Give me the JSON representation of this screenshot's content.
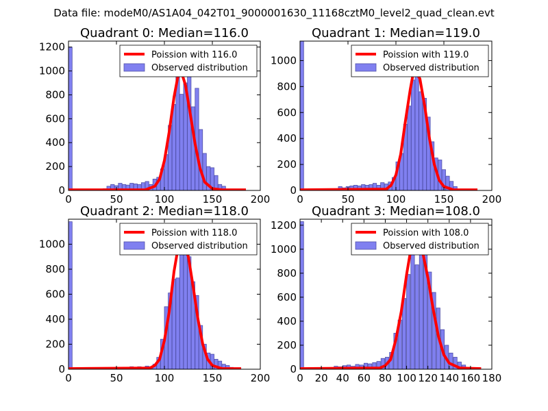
{
  "figure": {
    "suptitle": "Data file: modeM0/AS1A04_042T01_9000001630_11168cztM0_level2_quad_clean.evt"
  },
  "colors": {
    "bars": "#8080f0",
    "bar_edge": "#5050a8",
    "fit_line": "#ff0000"
  },
  "chart_data": [
    {
      "type": "bar",
      "title": "Quadrant 0: Median=116.0",
      "xlim": [
        0,
        200
      ],
      "ylim": [
        0,
        1250
      ],
      "xticks": [
        0,
        50,
        100,
        150,
        200
      ],
      "yticks": [
        0,
        200,
        400,
        600,
        800,
        1000,
        1200
      ],
      "legend": {
        "position": "top-right",
        "fit_label": "Poission with 116.0",
        "hist_label": "Observed distribution"
      },
      "bin_width": 3.8,
      "bins": [
        [
          0,
          1200
        ],
        [
          36,
          15
        ],
        [
          40,
          35
        ],
        [
          44,
          50
        ],
        [
          48,
          40
        ],
        [
          52,
          60
        ],
        [
          56,
          50
        ],
        [
          60,
          45
        ],
        [
          64,
          60
        ],
        [
          68,
          55
        ],
        [
          72,
          50
        ],
        [
          76,
          65
        ],
        [
          80,
          75
        ],
        [
          84,
          50
        ],
        [
          88,
          95
        ],
        [
          92,
          110
        ],
        [
          96,
          180
        ],
        [
          100,
          300
        ],
        [
          104,
          545
        ],
        [
          108,
          720
        ],
        [
          112,
          990
        ],
        [
          116,
          805
        ],
        [
          120,
          900
        ],
        [
          124,
          1000
        ],
        [
          128,
          700
        ],
        [
          132,
          855
        ],
        [
          136,
          510
        ],
        [
          140,
          310
        ],
        [
          144,
          200
        ],
        [
          148,
          190
        ],
        [
          152,
          125
        ],
        [
          156,
          50
        ],
        [
          160,
          35
        ],
        [
          168,
          10
        ],
        [
          176,
          5
        ]
      ],
      "fit_line": {
        "x": [
          0,
          80,
          90,
          95,
          100,
          105,
          110,
          114,
          116,
          118,
          122,
          127,
          132,
          137,
          142,
          150,
          160,
          185
        ],
        "y": [
          5,
          5,
          35,
          95,
          250,
          490,
          780,
          950,
          990,
          985,
          880,
          640,
          390,
          190,
          70,
          15,
          5,
          5
        ]
      }
    },
    {
      "type": "bar",
      "title": "Quadrant 1: Median=119.0",
      "xlim": [
        0,
        200
      ],
      "ylim": [
        0,
        1150
      ],
      "xticks": [
        0,
        50,
        100,
        150,
        200
      ],
      "yticks": [
        0,
        200,
        400,
        600,
        800,
        1000
      ],
      "legend": {
        "position": "top-right",
        "fit_label": "Poission with 119.0",
        "hist_label": "Observed distribution"
      },
      "bin_width": 3.8,
      "bins": [
        [
          0,
          1150
        ],
        [
          40,
          30
        ],
        [
          44,
          20
        ],
        [
          48,
          30
        ],
        [
          52,
          35
        ],
        [
          56,
          40
        ],
        [
          60,
          35
        ],
        [
          64,
          45
        ],
        [
          68,
          40
        ],
        [
          72,
          45
        ],
        [
          76,
          55
        ],
        [
          80,
          40
        ],
        [
          84,
          60
        ],
        [
          88,
          50
        ],
        [
          92,
          65
        ],
        [
          96,
          100
        ],
        [
          100,
          220
        ],
        [
          104,
          285
        ],
        [
          108,
          510
        ],
        [
          112,
          650
        ],
        [
          116,
          850
        ],
        [
          120,
          1000
        ],
        [
          124,
          760
        ],
        [
          128,
          710
        ],
        [
          132,
          565
        ],
        [
          136,
          375
        ],
        [
          140,
          250
        ],
        [
          144,
          235
        ],
        [
          148,
          160
        ],
        [
          152,
          110
        ],
        [
          156,
          70
        ],
        [
          160,
          30
        ],
        [
          164,
          10
        ]
      ],
      "fit_line": {
        "x": [
          0,
          90,
          95,
          100,
          105,
          110,
          115,
          118,
          121,
          125,
          130,
          135,
          140,
          145,
          150,
          160,
          185
        ],
        "y": [
          5,
          10,
          40,
          120,
          280,
          540,
          780,
          900,
          910,
          860,
          650,
          400,
          200,
          80,
          30,
          5,
          5
        ]
      }
    },
    {
      "type": "bar",
      "title": "Quadrant 2: Median=118.0",
      "xlim": [
        0,
        200
      ],
      "ylim": [
        0,
        1200
      ],
      "xticks": [
        0,
        50,
        100,
        150,
        200
      ],
      "yticks": [
        0,
        200,
        400,
        600,
        800,
        1000
      ],
      "legend": {
        "position": "top-right",
        "fit_label": "Poission with 118.0",
        "hist_label": "Observed distribution"
      },
      "bin_width": 3.8,
      "bins": [
        [
          0,
          1180
        ],
        [
          52,
          10
        ],
        [
          56,
          15
        ],
        [
          60,
          10
        ],
        [
          64,
          20
        ],
        [
          68,
          15
        ],
        [
          72,
          20
        ],
        [
          76,
          15
        ],
        [
          80,
          25
        ],
        [
          84,
          20
        ],
        [
          88,
          40
        ],
        [
          92,
          95
        ],
        [
          96,
          240
        ],
        [
          100,
          500
        ],
        [
          104,
          610
        ],
        [
          108,
          720
        ],
        [
          112,
          730
        ],
        [
          116,
          1070
        ],
        [
          120,
          1030
        ],
        [
          124,
          900
        ],
        [
          128,
          700
        ],
        [
          132,
          590
        ],
        [
          136,
          350
        ],
        [
          140,
          200
        ],
        [
          144,
          130
        ],
        [
          148,
          120
        ],
        [
          152,
          80
        ],
        [
          156,
          65
        ],
        [
          160,
          40
        ],
        [
          164,
          30
        ],
        [
          168,
          15
        ],
        [
          172,
          10
        ],
        [
          176,
          5
        ]
      ],
      "fit_line": {
        "x": [
          0,
          85,
          90,
          95,
          100,
          105,
          110,
          114,
          118,
          121,
          125,
          130,
          135,
          140,
          145,
          150,
          160,
          180
        ],
        "y": [
          5,
          10,
          30,
          80,
          230,
          460,
          780,
          960,
          1000,
          990,
          900,
          660,
          400,
          200,
          80,
          30,
          5,
          5
        ]
      }
    },
    {
      "type": "bar",
      "title": "Quadrant 3: Median=108.0",
      "xlim": [
        0,
        180
      ],
      "ylim": [
        0,
        1250
      ],
      "xticks": [
        0,
        20,
        40,
        60,
        80,
        100,
        120,
        140,
        160,
        180
      ],
      "yticks": [
        0,
        200,
        400,
        600,
        800,
        1000,
        1200
      ],
      "legend": {
        "position": "top-right",
        "fit_label": "Poission with 108.0",
        "hist_label": "Observed distribution"
      },
      "bin_width": 3.4,
      "bins": [
        [
          0,
          1230
        ],
        [
          28,
          10
        ],
        [
          32,
          25
        ],
        [
          36,
          20
        ],
        [
          40,
          30
        ],
        [
          44,
          35
        ],
        [
          48,
          25
        ],
        [
          52,
          40
        ],
        [
          56,
          35
        ],
        [
          60,
          50
        ],
        [
          64,
          45
        ],
        [
          68,
          55
        ],
        [
          72,
          65
        ],
        [
          76,
          90
        ],
        [
          80,
          100
        ],
        [
          84,
          140
        ],
        [
          88,
          300
        ],
        [
          92,
          410
        ],
        [
          96,
          590
        ],
        [
          100,
          790
        ],
        [
          104,
          980
        ],
        [
          108,
          870
        ],
        [
          112,
          1000
        ],
        [
          116,
          1050
        ],
        [
          120,
          810
        ],
        [
          124,
          640
        ],
        [
          128,
          510
        ],
        [
          132,
          330
        ],
        [
          136,
          200
        ],
        [
          140,
          135
        ],
        [
          144,
          100
        ],
        [
          148,
          60
        ],
        [
          152,
          35
        ],
        [
          156,
          10
        ]
      ],
      "fit_line": {
        "x": [
          0,
          75,
          80,
          85,
          90,
          95,
          100,
          104,
          108,
          111,
          115,
          120,
          125,
          130,
          135,
          140,
          150,
          170
        ],
        "y": [
          5,
          10,
          30,
          80,
          250,
          480,
          790,
          1000,
          1050,
          1040,
          980,
          760,
          500,
          270,
          120,
          50,
          10,
          5
        ]
      }
    }
  ]
}
